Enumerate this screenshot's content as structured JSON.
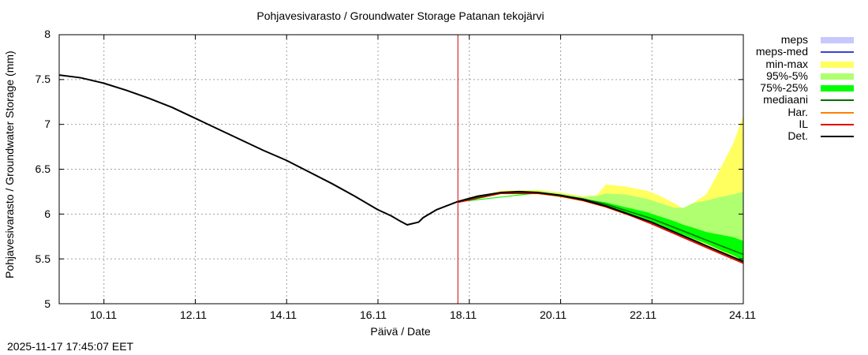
{
  "title": "Pohjavesivarasto / Groundwater Storage   Patanan tekojärvi",
  "ylabel": "Pohjavesivarasto / Groundwater Storage (mm)",
  "xlabel": "Päivä / Date",
  "timestamp": "2025-11-17 17:45:07 EET",
  "legend": [
    {
      "label": "meps",
      "color": "#c8c8ff",
      "kind": "band"
    },
    {
      "label": "meps-med",
      "color": "#4040d0",
      "kind": "line"
    },
    {
      "label": "min-max",
      "color": "#ffff60",
      "kind": "band"
    },
    {
      "label": "95%-5%",
      "color": "#b0ff70",
      "kind": "band"
    },
    {
      "label": "75%-25%",
      "color": "#00ff00",
      "kind": "band"
    },
    {
      "label": "mediaani",
      "color": "#007000",
      "kind": "line"
    },
    {
      "label": "Har.",
      "color": "#ff8000",
      "kind": "line"
    },
    {
      "label": "IL",
      "color": "#e00000",
      "kind": "line"
    },
    {
      "label": "Det.",
      "color": "#000000",
      "kind": "line"
    }
  ],
  "chart_data": {
    "type": "line",
    "title": "Pohjavesivarasto / Groundwater Storage   Patanan tekojärvi",
    "xlabel": "Päivä / Date",
    "ylabel": "Pohjavesivarasto / Groundwater Storage (mm)",
    "ylim": [
      5,
      8
    ],
    "xlim_days": [
      9.13,
      24.11
    ],
    "yticks": [
      "5",
      "5.5",
      "6",
      "6.5",
      "7",
      "7.5",
      "8"
    ],
    "xticks": [
      "10.11",
      "12.11",
      "14.11",
      "16.11",
      "18.11",
      "20.11",
      "22.11",
      "24.11"
    ],
    "xtick_days": [
      10.11,
      12.11,
      14.11,
      16.11,
      18.11,
      20.11,
      22.11,
      24.11
    ],
    "grid": true,
    "legend_position": "right-outside",
    "now_marker_day": 17.86,
    "now_marker_color": "#d00000",
    "series": [
      {
        "name": "Det.",
        "color": "#000000",
        "x": [
          9.13,
          9.6,
          10.1,
          10.6,
          11.1,
          11.6,
          12.1,
          12.6,
          13.1,
          13.6,
          14.1,
          14.6,
          15.1,
          15.6,
          16.1,
          16.4,
          16.6,
          16.75,
          17.0,
          17.1,
          17.4,
          17.86,
          18.3,
          18.8,
          19.2,
          19.6,
          20.1,
          20.6,
          21.1,
          21.6,
          22.1,
          22.6,
          23.1,
          23.6,
          24.11
        ],
        "values": [
          7.55,
          7.52,
          7.46,
          7.38,
          7.29,
          7.19,
          7.07,
          6.95,
          6.83,
          6.71,
          6.6,
          6.47,
          6.34,
          6.2,
          6.05,
          5.98,
          5.92,
          5.88,
          5.91,
          5.96,
          6.05,
          6.14,
          6.2,
          6.24,
          6.25,
          6.24,
          6.21,
          6.16,
          6.09,
          6.0,
          5.91,
          5.8,
          5.69,
          5.58,
          5.47
        ]
      },
      {
        "name": "mediaani",
        "color": "#007000",
        "x": [
          17.86,
          18.8,
          19.6,
          20.1,
          20.6,
          21.1,
          21.6,
          22.1,
          22.6,
          23.1,
          23.6,
          24.11
        ],
        "values": [
          6.14,
          6.24,
          6.24,
          6.21,
          6.17,
          6.11,
          6.03,
          5.95,
          5.85,
          5.75,
          5.65,
          5.55
        ]
      },
      {
        "name": "IL",
        "color": "#e00000",
        "x": [
          17.86,
          18.8,
          19.6,
          20.1,
          20.6,
          21.1,
          21.6,
          22.1,
          22.6,
          23.1,
          23.6,
          24.11
        ],
        "values": [
          6.13,
          6.23,
          6.23,
          6.2,
          6.15,
          6.08,
          5.99,
          5.89,
          5.78,
          5.67,
          5.56,
          5.45
        ]
      },
      {
        "name": "Har.",
        "color": "#ff8000",
        "x": [
          17.86,
          18.8,
          19.6,
          20.1,
          20.6,
          21.1,
          21.6,
          22.1,
          22.6,
          23.1,
          23.6,
          24.11
        ],
        "values": [
          6.13,
          6.23,
          6.24,
          6.2,
          6.15,
          6.08,
          5.99,
          5.9,
          5.79,
          5.68,
          5.57,
          5.46
        ]
      }
    ],
    "bands": [
      {
        "name": "min-max",
        "color": "#ffff60",
        "x": [
          17.86,
          18.8,
          19.6,
          20.1,
          20.6,
          20.9,
          21.1,
          21.5,
          22.0,
          22.3,
          22.6,
          22.8,
          23.0,
          23.3,
          23.6,
          23.9,
          24.11
        ],
        "upper": [
          6.14,
          6.26,
          6.27,
          6.24,
          6.2,
          6.21,
          6.33,
          6.31,
          6.26,
          6.2,
          6.12,
          6.06,
          6.12,
          6.22,
          6.5,
          6.8,
          7.1
        ],
        "lower": [
          6.13,
          6.22,
          6.22,
          6.19,
          6.14,
          6.1,
          6.07,
          6.0,
          5.92,
          5.86,
          5.79,
          5.75,
          5.71,
          5.66,
          5.59,
          5.52,
          5.46
        ]
      },
      {
        "name": "95%-5%",
        "color": "#b0ff70",
        "x": [
          17.86,
          18.8,
          19.6,
          20.1,
          20.6,
          20.9,
          21.1,
          21.5,
          22.0,
          22.3,
          22.6,
          22.8,
          23.0,
          23.3,
          23.6,
          23.9,
          24.11
        ],
        "upper": [
          6.14,
          6.25,
          6.26,
          6.23,
          6.19,
          6.2,
          6.23,
          6.22,
          6.17,
          6.12,
          6.07,
          6.07,
          6.12,
          6.15,
          6.19,
          6.22,
          6.25
        ],
        "lower": [
          6.13,
          6.23,
          6.23,
          6.2,
          6.15,
          6.11,
          6.08,
          6.01,
          5.92,
          5.87,
          5.8,
          5.76,
          5.72,
          5.67,
          5.6,
          5.53,
          5.47
        ]
      },
      {
        "name": "75%-25%",
        "color": "#00ff00",
        "x": [
          17.86,
          19.6,
          20.6,
          21.1,
          21.5,
          22.0,
          22.3,
          22.6,
          22.8,
          23.0,
          23.3,
          23.6,
          23.9,
          24.11
        ],
        "upper": [
          6.14,
          6.24,
          6.17,
          6.13,
          6.08,
          6.02,
          5.97,
          5.92,
          5.88,
          5.85,
          5.8,
          5.77,
          5.74,
          5.7
        ],
        "lower": [
          6.13,
          6.23,
          6.15,
          6.09,
          6.02,
          5.94,
          5.88,
          5.81,
          5.77,
          5.73,
          5.67,
          5.6,
          5.54,
          5.48
        ]
      }
    ]
  }
}
